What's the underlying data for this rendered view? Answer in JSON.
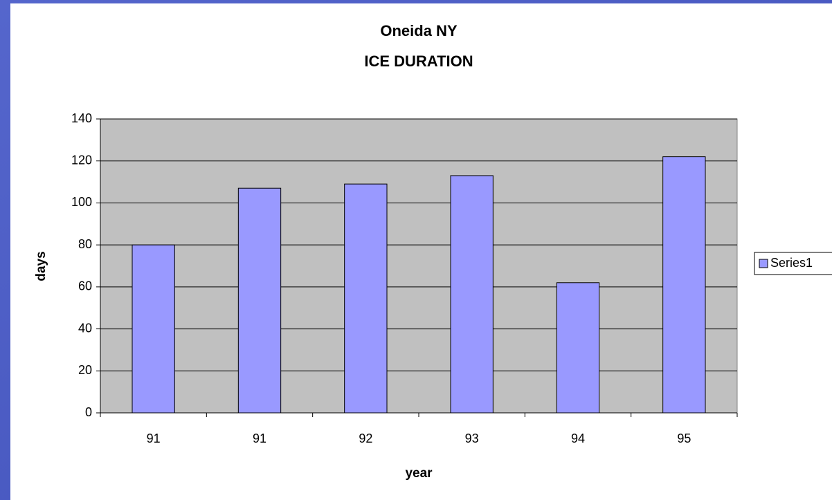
{
  "chart_data": {
    "type": "bar",
    "title": "Oneida NY",
    "subtitle": "ICE DURATION",
    "x_label": "year",
    "y_label": "days",
    "categories": [
      "91",
      "91",
      "92",
      "93",
      "94",
      "95"
    ],
    "series": [
      {
        "name": "Series1",
        "color": "#9999ff",
        "values": [
          80,
          107,
          109,
          113,
          62,
          122
        ]
      }
    ],
    "ylim": [
      0,
      140
    ],
    "yticks": [
      0,
      20,
      40,
      60,
      80,
      100,
      120,
      140
    ],
    "grid": true,
    "legend": "right"
  }
}
